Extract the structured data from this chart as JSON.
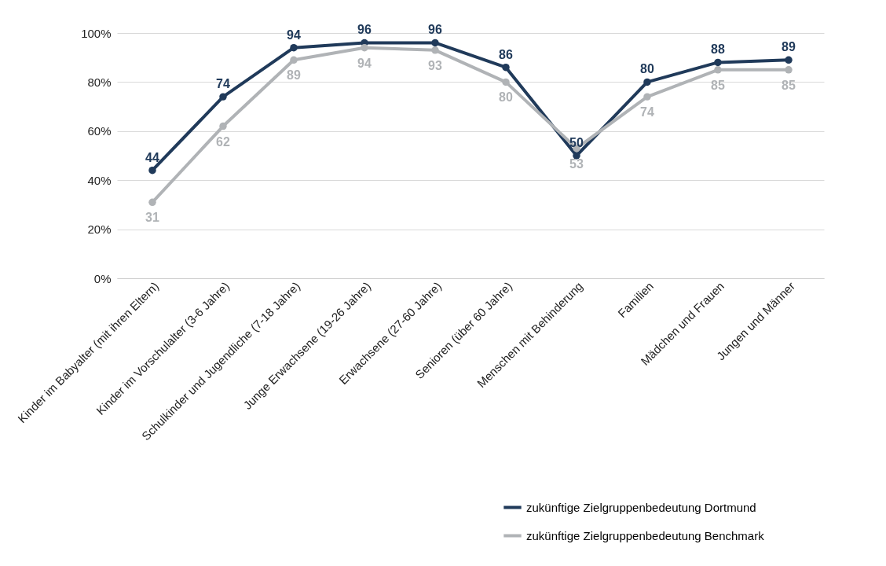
{
  "chart_data": {
    "type": "line",
    "categories": [
      "Kinder im Babyalter (mit ihren Eltern)",
      "Kinder im Vorschulalter (3-6 Jahre)",
      "Schulkinder und Jugendliche (7-18 Jahre)",
      "Junge Erwachsene (19-26 Jahre)",
      "Erwachsene (27-60 Jahre)",
      "Senioren (über 60 Jahre)",
      "Menschen mit Behinderung",
      "Familien",
      "Mädchen und Frauen",
      "Jungen und Männer"
    ],
    "series": [
      {
        "name": "zukünftige Zielgruppenbedeutung Dortmund",
        "color": "#203a5a",
        "values": [
          44,
          74,
          94,
          96,
          96,
          86,
          50,
          80,
          88,
          89
        ]
      },
      {
        "name": "zukünftige Zielgruppenbedeutung Benchmark",
        "color": "#b0b3b6",
        "values": [
          31,
          62,
          89,
          94,
          93,
          80,
          53,
          74,
          85,
          85
        ]
      }
    ],
    "ylim": [
      0,
      100
    ],
    "yticks": [
      {
        "value": 0,
        "label": "0%"
      },
      {
        "value": 20,
        "label": "20%"
      },
      {
        "value": 40,
        "label": "40%"
      },
      {
        "value": 60,
        "label": "60%"
      },
      {
        "value": 80,
        "label": "80%"
      },
      {
        "value": 100,
        "label": "100%"
      }
    ],
    "grid": "y",
    "legend": "bottom right",
    "marker": "circle",
    "line_style": "solid",
    "data_labels": true
  }
}
